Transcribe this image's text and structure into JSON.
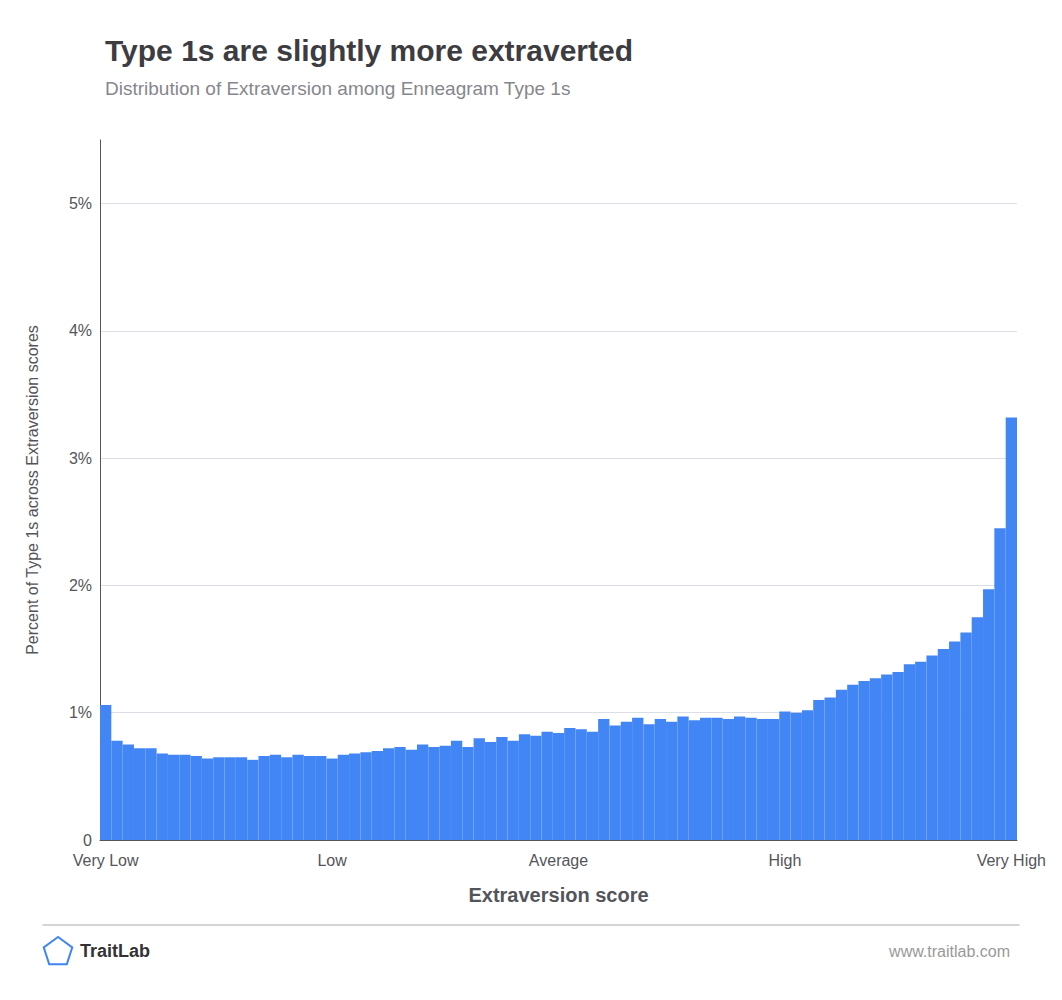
{
  "chart_data": {
    "type": "bar",
    "title": "Type 1s are slightly more extraverted",
    "subtitle": "Distribution of Extraversion among Enneagram Type 1s",
    "xlabel": "Extraversion score",
    "ylabel": "Percent of Type 1s across Extraversion scores",
    "annotations": [
      "TraitLab",
      "www.traitlab.com"
    ],
    "color": "#4285F4",
    "grid": true,
    "categories": [
      "Very Low",
      null,
      null,
      null,
      null,
      null,
      null,
      null,
      null,
      null,
      null,
      null,
      null,
      null,
      null,
      null,
      null,
      null,
      null,
      null,
      "Low",
      null,
      null,
      null,
      null,
      null,
      null,
      null,
      null,
      null,
      null,
      null,
      null,
      null,
      null,
      null,
      null,
      null,
      null,
      null,
      "Average",
      null,
      null,
      null,
      null,
      null,
      null,
      null,
      null,
      null,
      null,
      null,
      null,
      null,
      null,
      null,
      null,
      null,
      null,
      null,
      "High",
      null,
      null,
      null,
      null,
      null,
      null,
      null,
      null,
      null,
      null,
      null,
      null,
      null,
      null,
      null,
      null,
      null,
      null,
      null,
      "Very High"
    ],
    "values": [
      0.0106,
      0.0078,
      0.0075,
      0.0072,
      0.0072,
      0.0068,
      0.0067,
      0.0067,
      0.0066,
      0.0064,
      0.0065,
      0.0065,
      0.0065,
      0.0063,
      0.0066,
      0.0067,
      0.0065,
      0.0067,
      0.0066,
      0.0066,
      0.0064,
      0.0067,
      0.0068,
      0.0069,
      0.007,
      0.0072,
      0.0073,
      0.0071,
      0.0075,
      0.0073,
      0.0074,
      0.0078,
      0.0073,
      0.008,
      0.0077,
      0.0081,
      0.0078,
      0.0083,
      0.0082,
      0.0085,
      0.0084,
      0.0088,
      0.0087,
      0.0085,
      0.0095,
      0.009,
      0.0093,
      0.0096,
      0.0091,
      0.0095,
      0.0093,
      0.0097,
      0.0094,
      0.0096,
      0.0096,
      0.0095,
      0.0097,
      0.0096,
      0.0095,
      0.0095,
      0.0101,
      0.01,
      0.0102,
      0.011,
      0.0112,
      0.0118,
      0.0122,
      0.0125,
      0.0127,
      0.013,
      0.0132,
      0.0138,
      0.014,
      0.0145,
      0.015,
      0.0156,
      0.0163,
      0.0175,
      0.0197,
      0.0245,
      0.0332
    ],
    "ylim": [
      0,
      0.055
    ],
    "yticks": [
      0,
      {
        "value": 0.01,
        "label": "1%"
      },
      {
        "value": 0.02,
        "label": "2%"
      },
      {
        "value": 0.03,
        "label": "3%"
      },
      {
        "value": 0.04,
        "label": "4%"
      },
      {
        "value": 0.05,
        "label": "5%"
      }
    ]
  }
}
